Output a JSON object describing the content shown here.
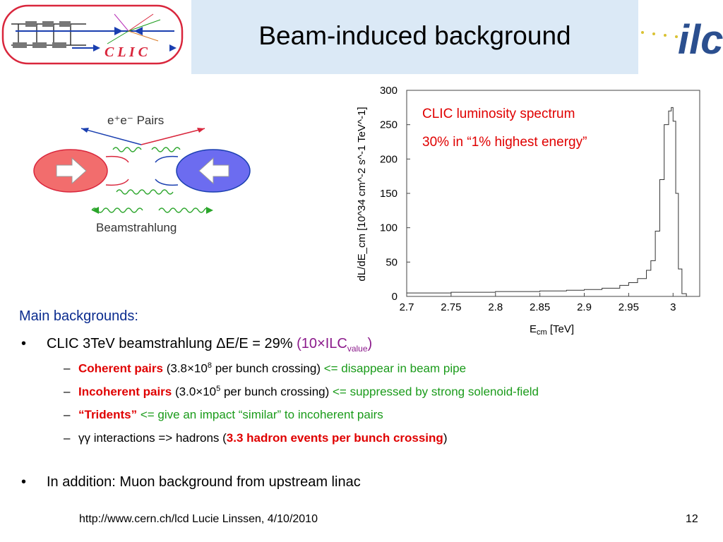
{
  "header": {
    "title": "Beam-induced background",
    "clic_logo_text": "C L I C",
    "ilc_logo_text": "ilc"
  },
  "diagram": {
    "pairs_label": "e⁺e⁻  Pairs",
    "beamstrahlung_label": "Beamstrahlung"
  },
  "chart_data": {
    "type": "line",
    "xlabel": "E_cm [TeV]",
    "ylabel": "dL/dE_cm [10^34 cm^-2 s^-1 TeV^-1]",
    "xlim": [
      2.7,
      3.03
    ],
    "ylim": [
      0,
      300
    ],
    "xticks": [
      "2.7",
      "2.75",
      "2.8",
      "2.85",
      "2.9",
      "2.95",
      "3"
    ],
    "yticks": [
      "0",
      "50",
      "100",
      "150",
      "200",
      "250",
      "300"
    ],
    "annotations": [
      "CLIC luminosity spectrum",
      "30% in “1% highest energy”"
    ],
    "x": [
      2.7,
      2.75,
      2.8,
      2.85,
      2.88,
      2.9,
      2.92,
      2.94,
      2.95,
      2.96,
      2.97,
      2.975,
      2.98,
      2.985,
      2.99,
      2.995,
      2.998,
      3.0,
      3.003,
      3.006,
      3.01,
      3.015
    ],
    "y": [
      5,
      6,
      7,
      8,
      9,
      10,
      12,
      16,
      20,
      26,
      38,
      52,
      95,
      170,
      250,
      270,
      275,
      255,
      150,
      40,
      4,
      0
    ]
  },
  "content": {
    "main_heading": "Main backgrounds:",
    "bullet1": {
      "prefix": "CLIC 3TeV beamstrahlung ΔE/E = 29% ",
      "paren_open": "(10×ILC",
      "sub": "value",
      "paren_close": ")"
    },
    "sub1": {
      "bold": "Coherent pairs",
      "text_a": " (3.8×10",
      "sup": "8",
      "text_b": " per bunch crossing) ",
      "green": "<= disappear in beam pipe"
    },
    "sub2": {
      "bold": "Incoherent pairs",
      "text_a": " (3.0×10",
      "sup": "5",
      "text_b": " per bunch crossing) ",
      "green": "<= suppressed by strong solenoid-field"
    },
    "sub3": {
      "bold": "“Tridents”",
      "green": " <= give an impact “similar” to incoherent pairs"
    },
    "sub4": {
      "text_a": "γγ interactions => hadrons (",
      "bold": "3.3 hadron events per bunch crossing",
      "text_b": ")"
    },
    "bullet2": "In addition: Muon background from upstream linac",
    "bullet_char": "•",
    "dash_char": "–"
  },
  "footer": {
    "url": "http://www.cern.ch/lcd   Lucie Linssen, 4/10/2010",
    "page": "12"
  }
}
